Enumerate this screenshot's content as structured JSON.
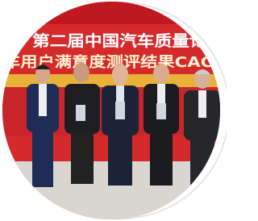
{
  "image": {
    "banner_lines": [
      "第二届中国汽车质量论坛",
      "车用户满意度测评结果CACS"
    ]
  }
}
